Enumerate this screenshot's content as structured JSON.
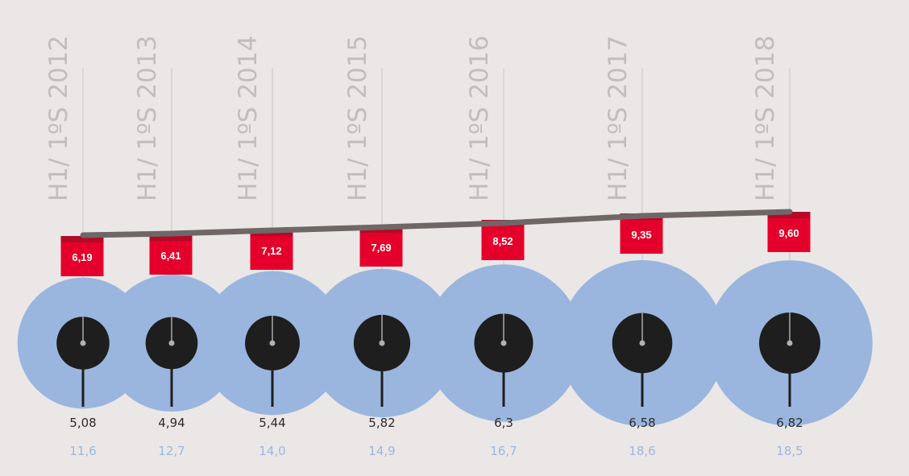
{
  "chart_data": {
    "type": "bubble-timeline",
    "categories": [
      "H1/ 1ºS 2012",
      "H1/ 1ºS 2013",
      "H1/ 1ºS 2014",
      "H1/ 1ºS 2015",
      "H1/ 1ºS 2016",
      "H1/ 1ºS 2017",
      "H1/ 1ºS 2018"
    ],
    "series": [
      {
        "values": [
          6.19,
          6.41,
          7.12,
          7.69,
          8.52,
          9.35,
          9.6
        ],
        "labels": [
          "6,19",
          "6,41",
          "7,12",
          "7,69",
          "8,52",
          "9,35",
          "9,60"
        ],
        "color": "#e4002b",
        "mark": "red-box-with-line"
      },
      {
        "values": [
          5.08,
          4.94,
          5.44,
          5.82,
          6.3,
          6.58,
          6.82
        ],
        "labels": [
          "5,08",
          "4,94",
          "5,44",
          "5,82",
          "6,3",
          "6,58",
          "6,82"
        ],
        "color": "#1e1e1e",
        "mark": "inner-black-circle"
      },
      {
        "values": [
          11.6,
          12.7,
          14.0,
          14.9,
          16.7,
          18.6,
          18.5
        ],
        "labels": [
          "11,6",
          "12,7",
          "14,0",
          "14,9",
          "16,7",
          "18,6",
          "18,5"
        ],
        "color": "#9ab6df",
        "mark": "outer-blue-circle"
      }
    ],
    "title": "",
    "xlabel": "",
    "ylabel": "",
    "grid": false,
    "legend": "none"
  },
  "colors": {
    "background": "#ebe7e6",
    "red": "#e4002b",
    "blue": "#9ab6df",
    "black": "#1e1e1e",
    "trend_line": "#6e6766",
    "period_text": "#c3bebd",
    "guide_line": "#cfcac9"
  }
}
